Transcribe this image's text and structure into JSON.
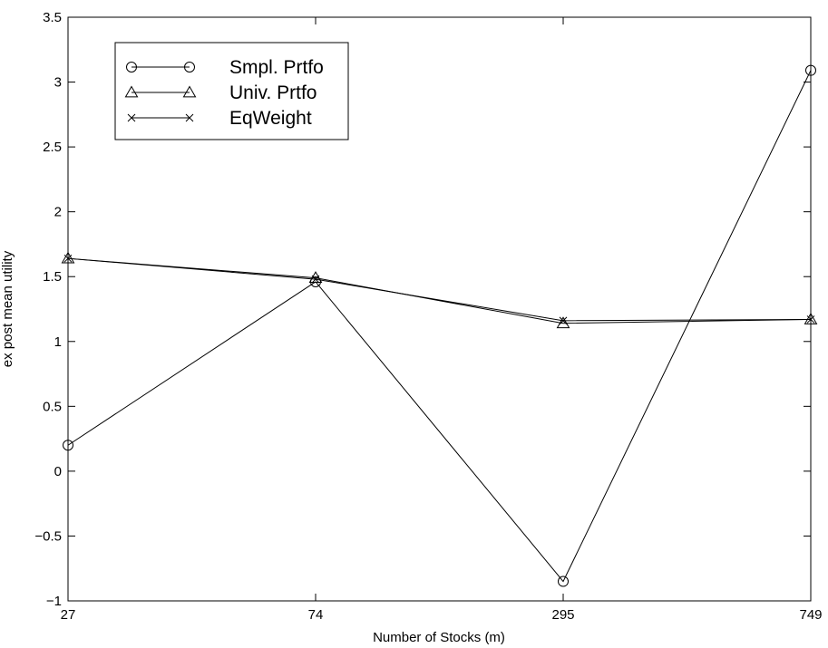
{
  "chart_data": {
    "type": "line",
    "title": "",
    "xlabel": "Number of Stocks (m)",
    "ylabel": "ex post mean utility",
    "x_categories": [
      "27",
      "74",
      "295",
      "749"
    ],
    "yticks": [
      "−1",
      "−0.5",
      "0",
      "0.5",
      "1",
      "1.5",
      "2",
      "2.5",
      "3",
      "3.5"
    ],
    "ytick_values": [
      -1,
      -0.5,
      0,
      0.5,
      1,
      1.5,
      2,
      2.5,
      3,
      3.5
    ],
    "ylim": [
      -1,
      3.5
    ],
    "grid": false,
    "legend_position": "top-left",
    "series": [
      {
        "name": "Smpl. Prtfo",
        "marker": "circle",
        "values": [
          0.2,
          1.46,
          -0.85,
          3.09
        ]
      },
      {
        "name": "Univ. Prtfo",
        "marker": "triangle",
        "values": [
          1.64,
          1.49,
          1.14,
          1.17
        ]
      },
      {
        "name": "EqWeight",
        "marker": "x",
        "values": [
          1.64,
          1.48,
          1.16,
          1.17
        ]
      }
    ],
    "line_color": "#000000"
  }
}
